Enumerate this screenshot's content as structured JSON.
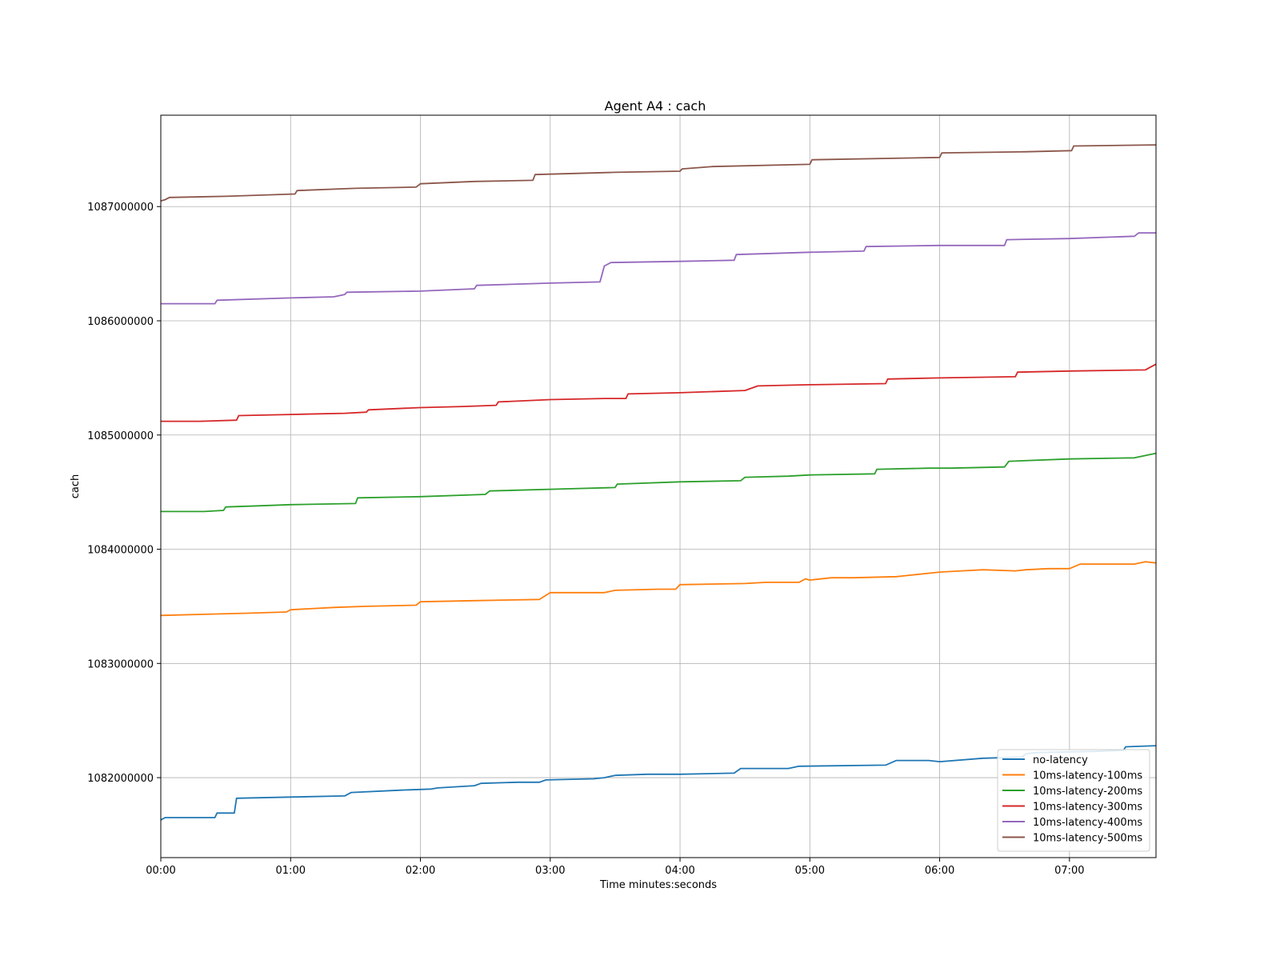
{
  "chart_data": {
    "type": "line",
    "title": "Agent A4 : cach",
    "xlabel": "Time minutes:seconds",
    "ylabel": "cach",
    "xlim": [
      0,
      460
    ],
    "ylim": [
      1081300000,
      1087800000
    ],
    "x_ticks": [
      {
        "value": 0,
        "label": "00:00"
      },
      {
        "value": 60,
        "label": "01:00"
      },
      {
        "value": 120,
        "label": "02:00"
      },
      {
        "value": 180,
        "label": "03:00"
      },
      {
        "value": 240,
        "label": "04:00"
      },
      {
        "value": 300,
        "label": "05:00"
      },
      {
        "value": 360,
        "label": "06:00"
      },
      {
        "value": 420,
        "label": "07:00"
      }
    ],
    "y_ticks": [
      {
        "value": 1082000000,
        "label": "1082000000"
      },
      {
        "value": 1083000000,
        "label": "1083000000"
      },
      {
        "value": 1084000000,
        "label": "1084000000"
      },
      {
        "value": 1085000000,
        "label": "1085000000"
      },
      {
        "value": 1086000000,
        "label": "1086000000"
      },
      {
        "value": 1087000000,
        "label": "1087000000"
      }
    ],
    "grid": true,
    "legend_position": "lower-right",
    "series": [
      {
        "name": "no-latency",
        "color": "#1f77b4",
        "x": [
          0,
          2,
          25,
          26,
          28,
          34,
          35,
          60,
          85,
          88,
          110,
          125,
          128,
          145,
          148,
          165,
          175,
          178,
          200,
          205,
          210,
          225,
          240,
          265,
          268,
          275,
          290,
          295,
          335,
          340,
          355,
          360,
          380,
          398,
          400,
          405,
          432,
          445,
          446,
          460
        ],
        "y": [
          1081630000,
          1081650000,
          1081650000,
          1081690000,
          1081690000,
          1081690000,
          1081820000,
          1081830000,
          1081840000,
          1081870000,
          1081890000,
          1081900000,
          1081910000,
          1081930000,
          1081950000,
          1081960000,
          1081960000,
          1081980000,
          1081990000,
          1082000000,
          1082020000,
          1082030000,
          1082030000,
          1082040000,
          1082080000,
          1082080000,
          1082080000,
          1082100000,
          1082110000,
          1082150000,
          1082150000,
          1082140000,
          1082170000,
          1082180000,
          1082210000,
          1082220000,
          1082230000,
          1082240000,
          1082270000,
          1082280000
        ]
      },
      {
        "name": "10ms-latency-100ms",
        "color": "#ff7f0e",
        "x": [
          0,
          20,
          40,
          58,
          60,
          80,
          95,
          118,
          120,
          145,
          175,
          180,
          205,
          210,
          230,
          238,
          240,
          270,
          280,
          295,
          298,
          300,
          310,
          320,
          340,
          345,
          360,
          370,
          380,
          395,
          400,
          410,
          420,
          425,
          450,
          455,
          460
        ],
        "y": [
          1083420000,
          1083430000,
          1083440000,
          1083450000,
          1083470000,
          1083490000,
          1083500000,
          1083510000,
          1083540000,
          1083550000,
          1083560000,
          1083620000,
          1083620000,
          1083640000,
          1083650000,
          1083650000,
          1083690000,
          1083700000,
          1083710000,
          1083710000,
          1083740000,
          1083730000,
          1083750000,
          1083750000,
          1083760000,
          1083770000,
          1083800000,
          1083810000,
          1083820000,
          1083810000,
          1083820000,
          1083830000,
          1083830000,
          1083870000,
          1083870000,
          1083890000,
          1083880000
        ]
      },
      {
        "name": "10ms-latency-200ms",
        "color": "#2ca02c",
        "x": [
          0,
          20,
          29,
          30,
          45,
          60,
          90,
          91,
          120,
          150,
          152,
          190,
          210,
          211,
          240,
          268,
          270,
          290,
          300,
          330,
          331,
          355,
          365,
          390,
          392,
          420,
          450,
          460
        ],
        "y": [
          1084330000,
          1084330000,
          1084340000,
          1084370000,
          1084380000,
          1084390000,
          1084400000,
          1084450000,
          1084460000,
          1084480000,
          1084510000,
          1084530000,
          1084540000,
          1084570000,
          1084590000,
          1084600000,
          1084630000,
          1084640000,
          1084650000,
          1084660000,
          1084700000,
          1084710000,
          1084710000,
          1084720000,
          1084770000,
          1084790000,
          1084800000,
          1084840000
        ]
      },
      {
        "name": "10ms-latency-300ms",
        "color": "#d62728",
        "x": [
          0,
          18,
          35,
          36,
          60,
          85,
          95,
          96,
          120,
          140,
          155,
          156,
          180,
          205,
          215,
          216,
          240,
          270,
          276,
          300,
          335,
          336,
          360,
          395,
          396,
          420,
          455,
          460
        ],
        "y": [
          1085120000,
          1085120000,
          1085130000,
          1085170000,
          1085180000,
          1085190000,
          1085200000,
          1085220000,
          1085240000,
          1085250000,
          1085260000,
          1085290000,
          1085310000,
          1085320000,
          1085320000,
          1085360000,
          1085370000,
          1085390000,
          1085430000,
          1085440000,
          1085450000,
          1085490000,
          1085500000,
          1085510000,
          1085550000,
          1085560000,
          1085570000,
          1085620000
        ]
      },
      {
        "name": "10ms-latency-400ms",
        "color": "#9467bd",
        "x": [
          0,
          25,
          26,
          60,
          80,
          85,
          86,
          120,
          145,
          146,
          180,
          203,
          205,
          208,
          240,
          265,
          266,
          300,
          325,
          326,
          360,
          390,
          391,
          420,
          450,
          452,
          460
        ],
        "y": [
          1086150000,
          1086150000,
          1086180000,
          1086200000,
          1086210000,
          1086230000,
          1086250000,
          1086260000,
          1086280000,
          1086310000,
          1086330000,
          1086340000,
          1086480000,
          1086510000,
          1086520000,
          1086530000,
          1086580000,
          1086600000,
          1086610000,
          1086650000,
          1086660000,
          1086660000,
          1086710000,
          1086720000,
          1086740000,
          1086770000,
          1086770000
        ]
      },
      {
        "name": "10ms-latency-500ms",
        "color": "#8c564b",
        "x": [
          0,
          2,
          4,
          30,
          62,
          63,
          90,
          118,
          120,
          145,
          172,
          173,
          210,
          240,
          241,
          255,
          300,
          301,
          360,
          361,
          400,
          421,
          422,
          460
        ],
        "y": [
          1087050000,
          1087060000,
          1087080000,
          1087090000,
          1087110000,
          1087140000,
          1087160000,
          1087170000,
          1087200000,
          1087220000,
          1087230000,
          1087280000,
          1087300000,
          1087310000,
          1087330000,
          1087350000,
          1087370000,
          1087410000,
          1087430000,
          1087470000,
          1087480000,
          1087490000,
          1087530000,
          1087540000
        ]
      }
    ]
  }
}
